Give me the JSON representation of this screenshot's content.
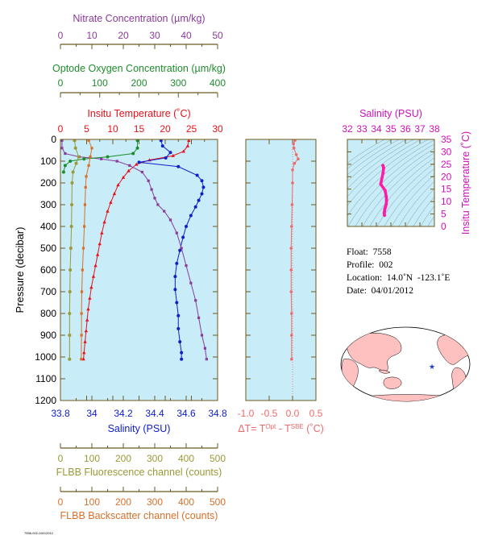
{
  "chart_data": [
    {
      "type": "line",
      "panel": "main-profiles",
      "y_axis": {
        "label": "Pressure (decibar)",
        "range": [
          0,
          1200
        ],
        "inverted": true,
        "ticks": [
          0,
          100,
          200,
          300,
          400,
          500,
          600,
          700,
          800,
          900,
          1000,
          1100,
          1200
        ]
      },
      "x_axes": [
        {
          "key": "nitrate",
          "label": "Nitrate Concentration (µm/kg)",
          "position": "top",
          "range": [
            0,
            50
          ],
          "ticks": [
            0,
            10,
            20,
            30,
            40,
            50
          ],
          "color": "#8a3c9a"
        },
        {
          "key": "oxygen",
          "label": "Optode Oxygen Concentration (µm/kg)",
          "position": "top",
          "range": [
            0,
            400
          ],
          "ticks": [
            0,
            100,
            200,
            300,
            400
          ],
          "color": "#1e8c2c"
        },
        {
          "key": "temperature",
          "label": "Insitu Temperature (˚C)",
          "position": "top",
          "range": [
            0,
            30
          ],
          "ticks": [
            0,
            5,
            10,
            15,
            20,
            25,
            30
          ],
          "color": "#e8101a"
        },
        {
          "key": "salinity",
          "label": "Salinity (PSU)",
          "position": "bottom",
          "range": [
            33.8,
            34.8
          ],
          "ticks": [
            33.8,
            34.0,
            34.2,
            34.4,
            34.6,
            34.8
          ],
          "color": "#1020c8"
        },
        {
          "key": "fluorescence",
          "label": "FLBB Fluorescence channel (counts)",
          "position": "bottom",
          "range": [
            0,
            500
          ],
          "ticks": [
            0,
            100,
            200,
            300,
            400,
            500
          ],
          "color": "#9a9a36"
        },
        {
          "key": "backscatter",
          "label": "FLBB Backscatter channel (counts)",
          "position": "bottom",
          "range": [
            0,
            500
          ],
          "ticks": [
            0,
            100,
            200,
            300,
            400,
            500
          ],
          "color": "#d8702a"
        }
      ],
      "series": [
        {
          "axis": "temperature",
          "color": "#e8101a",
          "marker": "triangle",
          "points": [
            [
              24.5,
              5
            ],
            [
              24.3,
              30
            ],
            [
              23.5,
              55
            ],
            [
              21.5,
              75
            ],
            [
              17,
              95
            ],
            [
              14.5,
              115
            ],
            [
              13,
              145
            ],
            [
              12,
              175
            ],
            [
              11,
              210
            ],
            [
              10.3,
              250
            ],
            [
              9.6,
              290
            ],
            [
              9,
              330
            ],
            [
              8.4,
              380
            ],
            [
              7.9,
              430
            ],
            [
              7.5,
              480
            ],
            [
              7.1,
              530
            ],
            [
              6.7,
              580
            ],
            [
              6.3,
              630
            ],
            [
              5.9,
              680
            ],
            [
              5.6,
              730
            ],
            [
              5.3,
              780
            ],
            [
              5.1,
              830
            ],
            [
              4.9,
              880
            ],
            [
              4.7,
              930
            ],
            [
              4.5,
              980
            ],
            [
              4.4,
              1010
            ]
          ]
        },
        {
          "axis": "salinity",
          "color": "#1020c8",
          "marker": "circle",
          "points": [
            [
              34.44,
              5
            ],
            [
              34.45,
              30
            ],
            [
              34.5,
              60
            ],
            [
              34.47,
              85
            ],
            [
              34.3,
              105
            ],
            [
              34.55,
              125
            ],
            [
              34.67,
              165
            ],
            [
              34.7,
              190
            ],
            [
              34.71,
              220
            ],
            [
              34.7,
              250
            ],
            [
              34.68,
              280
            ],
            [
              34.66,
              310
            ],
            [
              34.63,
              350
            ],
            [
              34.6,
              400
            ],
            [
              34.58,
              450
            ],
            [
              34.56,
              510
            ],
            [
              34.54,
              570
            ],
            [
              34.53,
              630
            ],
            [
              34.53,
              690
            ],
            [
              34.54,
              750
            ],
            [
              34.55,
              810
            ],
            [
              34.55,
              870
            ],
            [
              34.56,
              930
            ],
            [
              34.57,
              980
            ],
            [
              34.57,
              1010
            ]
          ]
        },
        {
          "axis": "nitrate",
          "color": "#8a3c9a",
          "marker": "square",
          "points": [
            [
              0.5,
              5
            ],
            [
              0.5,
              40
            ],
            [
              1.5,
              65
            ],
            [
              6,
              80
            ],
            [
              13,
              90
            ],
            [
              18,
              100
            ],
            [
              22,
              120
            ],
            [
              26,
              150
            ],
            [
              28,
              190
            ],
            [
              29,
              230
            ],
            [
              30,
              270
            ],
            [
              31,
              300
            ],
            [
              33,
              330
            ],
            [
              35,
              370
            ],
            [
              37,
              430
            ],
            [
              38.5,
              500
            ],
            [
              40,
              580
            ],
            [
              41.5,
              660
            ],
            [
              43,
              740
            ],
            [
              44,
              820
            ],
            [
              45,
              900
            ],
            [
              46,
              960
            ],
            [
              46.5,
              1010
            ]
          ]
        },
        {
          "axis": "oxygen",
          "color": "#1e8c2c",
          "marker": "circle",
          "points": [
            [
              196,
              5
            ],
            [
              196,
              40
            ],
            [
              185,
              65
            ],
            [
              120,
              80
            ],
            [
              60,
              90
            ],
            [
              25,
              100
            ],
            [
              12,
              120
            ],
            [
              8,
              150
            ]
          ]
        },
        {
          "axis": "fluorescence",
          "color": "#9a9a36",
          "marker": "circle",
          "points": [
            [
              45,
              5
            ],
            [
              48,
              40
            ],
            [
              58,
              80
            ],
            [
              50,
              110
            ],
            [
              40,
              150
            ],
            [
              37,
              200
            ],
            [
              36,
              300
            ],
            [
              35,
              400
            ],
            [
              33,
              500
            ],
            [
              31,
              600
            ],
            [
              30,
              700
            ],
            [
              29,
              800
            ],
            [
              29,
              900
            ],
            [
              29,
              1010
            ]
          ]
        },
        {
          "axis": "backscatter",
          "color": "#d8702a",
          "marker": "square",
          "points": [
            [
              90,
              5
            ],
            [
              100,
              40
            ],
            [
              95,
              80
            ],
            [
              90,
              120
            ],
            [
              82,
              170
            ],
            [
              80,
              220
            ],
            [
              78,
              300
            ],
            [
              76,
              400
            ],
            [
              73,
              500
            ],
            [
              70,
              600
            ],
            [
              68,
              700
            ],
            [
              67,
              800
            ],
            [
              67,
              900
            ],
            [
              66,
              1010
            ]
          ]
        }
      ]
    },
    {
      "type": "line",
      "panel": "delta-t",
      "x_axis": {
        "label": "ΔT= Tᴼᵖᵗ - Tˢᴮᴱ (˚C)",
        "label_parts": [
          "ΔT= T",
          "Opt",
          " - T",
          "SBE",
          " (˚C)"
        ],
        "range": [
          -1.0,
          0.5
        ],
        "ticks": [
          -1.0,
          -0.5,
          0.0,
          0.5
        ],
        "tick_labels": [
          "-1.0",
          "-0.5",
          "0.0",
          "0.5"
        ],
        "color": "#f06a6a"
      },
      "y_axis": {
        "range": [
          0,
          1200
        ],
        "inverted": true
      },
      "series": [
        {
          "color": "#f06a6a",
          "points": [
            [
              0.05,
              5
            ],
            [
              0.02,
              20
            ],
            [
              0.03,
              40
            ],
            [
              0.08,
              70
            ],
            [
              0.12,
              90
            ],
            [
              0.04,
              110
            ],
            [
              0.0,
              140
            ],
            [
              0.0,
              200
            ],
            [
              -0.01,
              300
            ],
            [
              -0.02,
              400
            ],
            [
              -0.03,
              500
            ],
            [
              -0.03,
              600
            ],
            [
              -0.03,
              700
            ],
            [
              -0.02,
              800
            ],
            [
              -0.02,
              900
            ],
            [
              -0.02,
              1010
            ]
          ]
        }
      ]
    },
    {
      "type": "line",
      "panel": "ts-diagram",
      "x_axis": {
        "label": "Salinity (PSU)",
        "range": [
          32,
          38
        ],
        "ticks": [
          32,
          33,
          34,
          35,
          36,
          37,
          38
        ],
        "color": "#d010b8"
      },
      "y_axis": {
        "label": "Insitu Temperature (˚C)",
        "range": [
          0,
          35
        ],
        "ticks": [
          0,
          5,
          10,
          15,
          20,
          25,
          30,
          35
        ],
        "color": "#d010b8"
      },
      "series": [
        {
          "color": "#ff1aa8",
          "points": [
            [
              34.45,
              24.5
            ],
            [
              34.5,
              23.5
            ],
            [
              34.46,
              21.5
            ],
            [
              34.3,
              17
            ],
            [
              34.6,
              14.5
            ],
            [
              34.68,
              12
            ],
            [
              34.7,
              10.5
            ],
            [
              34.68,
              9
            ],
            [
              34.63,
              7.9
            ],
            [
              34.58,
              7
            ],
            [
              34.56,
              6
            ],
            [
              34.54,
              5.3
            ],
            [
              34.56,
              4.5
            ]
          ]
        }
      ]
    }
  ],
  "float_info": {
    "float": "Float:  7558",
    "profile": "Profile:  002",
    "location": "Location:  14.0˚N  -123.1˚E",
    "date": "Date:  04/01/2012"
  },
  "footer_id": "7558-002-04012012",
  "map": {
    "marker_lat": 14.0,
    "marker_lon": -123.1,
    "land_color": "#ffc0c0",
    "ocean_color": "#ffffff",
    "marker_color": "#1a3ad8"
  },
  "colors": {
    "plot_background": "#c8ecf8",
    "axis_line": "#6b5a20"
  }
}
